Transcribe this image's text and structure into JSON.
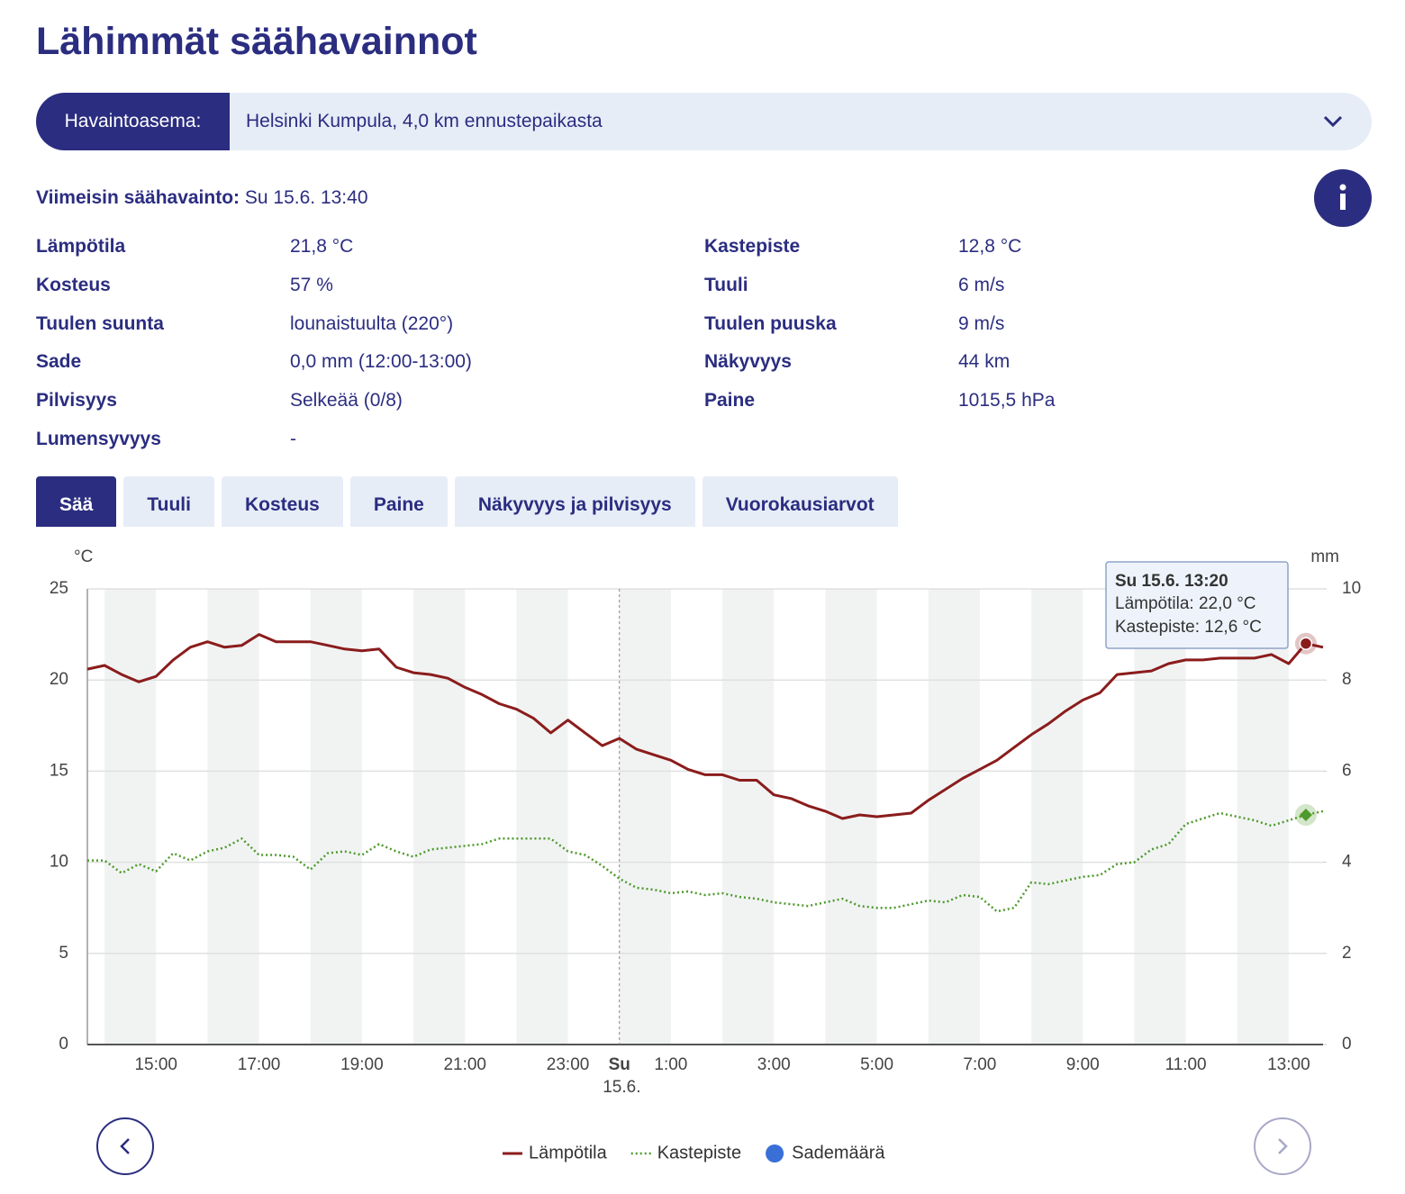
{
  "header": {
    "title": "Lähimmät säähavainnot"
  },
  "station": {
    "label": "Havaintoasema:",
    "value": "Helsinki Kumpula, 4,0 km ennustepaikasta"
  },
  "latest": {
    "label": "Viimeisin säähavainto:",
    "value": "Su 15.6. 13:40"
  },
  "observations": {
    "rows": [
      [
        "Lämpötila",
        "21,8 °C",
        "Kastepiste",
        "12,8 °C"
      ],
      [
        "Kosteus",
        "57 %",
        "Tuuli",
        "6 m/s"
      ],
      [
        "Tuulen suunta",
        "lounaistuulta (220°)",
        "Tuulen puuska",
        "9 m/s"
      ],
      [
        "Sade",
        "0,0 mm (12:00-13:00)",
        "Näkyvyys",
        "44 km"
      ],
      [
        "Pilvisyys",
        "Selkeää (0/8)",
        "Paine",
        "1015,5 hPa"
      ],
      [
        "Lumensyvyys",
        "-"
      ]
    ]
  },
  "tabs": [
    {
      "label": "Sää",
      "active": true
    },
    {
      "label": "Tuuli",
      "active": false
    },
    {
      "label": "Kosteus",
      "active": false
    },
    {
      "label": "Paine",
      "active": false
    },
    {
      "label": "Näkyvyys ja pilvisyys",
      "active": false
    },
    {
      "label": "Vuorokausiarvot",
      "active": false
    }
  ],
  "chart_data": {
    "type": "line",
    "y_label": "°C",
    "y2_label": "mm",
    "categories": [
      null,
      null,
      null,
      null,
      "15:00",
      null,
      null,
      null,
      null,
      null,
      "17:00",
      null,
      null,
      null,
      null,
      null,
      "19:00",
      null,
      null,
      null,
      null,
      null,
      "21:00",
      null,
      null,
      null,
      null,
      null,
      "23:00",
      null,
      null,
      "Su 15.6.",
      null,
      null,
      "1:00",
      null,
      null,
      null,
      null,
      null,
      "3:00",
      null,
      null,
      null,
      null,
      null,
      "5:00",
      null,
      null,
      null,
      null,
      null,
      "7:00",
      null,
      null,
      null,
      null,
      null,
      "9:00",
      null,
      null,
      null,
      null,
      null,
      "11:00",
      null,
      null,
      null,
      null,
      null,
      "13:00",
      null,
      null
    ],
    "series": [
      {
        "name": "Lämpötila",
        "color": "#8b1c1c",
        "style": "solid",
        "values": [
          20.6,
          20.8,
          20.3,
          19.9,
          20.2,
          21.1,
          21.8,
          22.1,
          21.8,
          21.9,
          22.5,
          22.1,
          22.1,
          22.1,
          21.9,
          21.7,
          21.6,
          21.7,
          20.7,
          20.4,
          20.3,
          20.1,
          19.6,
          19.2,
          18.7,
          18.4,
          17.9,
          17.1,
          17.8,
          17.1,
          16.4,
          16.8,
          16.2,
          15.9,
          15.6,
          15.1,
          14.8,
          14.8,
          14.5,
          14.5,
          13.7,
          13.5,
          13.1,
          12.8,
          12.4,
          12.6,
          12.5,
          12.6,
          12.7,
          13.4,
          14.0,
          14.6,
          15.1,
          15.6,
          16.3,
          17.0,
          17.6,
          18.3,
          18.9,
          19.3,
          20.3,
          20.4,
          20.5,
          20.9,
          21.1,
          21.1,
          21.2,
          21.2,
          21.2,
          21.4,
          20.9,
          22.0,
          21.8
        ]
      },
      {
        "name": "Kastepiste",
        "color": "#4e9a2c",
        "style": "dotted",
        "values": [
          10.1,
          10.1,
          9.4,
          9.9,
          9.5,
          10.5,
          10.1,
          10.6,
          10.8,
          11.3,
          10.4,
          10.4,
          10.3,
          9.6,
          10.5,
          10.6,
          10.4,
          11.0,
          10.6,
          10.3,
          10.7,
          10.8,
          10.9,
          11.0,
          11.3,
          11.3,
          11.3,
          11.3,
          10.6,
          10.4,
          9.8,
          9.1,
          8.6,
          8.5,
          8.3,
          8.4,
          8.2,
          8.3,
          8.1,
          8.0,
          7.8,
          7.7,
          7.6,
          7.8,
          8.0,
          7.6,
          7.5,
          7.5,
          7.7,
          7.9,
          7.8,
          8.2,
          8.1,
          7.3,
          7.5,
          8.9,
          8.8,
          9.0,
          9.2,
          9.3,
          9.9,
          10.0,
          10.7,
          11.0,
          12.1,
          12.4,
          12.7,
          12.5,
          12.3,
          12.0,
          12.3,
          12.6,
          12.8
        ]
      },
      {
        "name": "Sademäärä",
        "color": "#3a6fd8",
        "style": "bar",
        "axis": "y2",
        "values": [
          0,
          0,
          0,
          0,
          0,
          0,
          0,
          0,
          0,
          0,
          0,
          0,
          0,
          0,
          0,
          0,
          0,
          0,
          0,
          0,
          0,
          0,
          0,
          0,
          0,
          0,
          0,
          0,
          0,
          0,
          0,
          0,
          0,
          0,
          0,
          0,
          0,
          0,
          0,
          0,
          0,
          0,
          0,
          0,
          0,
          0,
          0,
          0,
          0,
          0,
          0,
          0,
          0,
          0,
          0,
          0,
          0,
          0,
          0,
          0,
          0,
          0,
          0,
          0,
          0,
          0,
          0,
          0,
          0,
          0,
          0,
          0,
          0
        ]
      }
    ],
    "ylim": [
      0,
      25
    ],
    "yticks": [
      0,
      5,
      10,
      15,
      20,
      25
    ],
    "y2lim": [
      0,
      10
    ],
    "y2ticks": [
      0,
      2,
      4,
      6,
      8,
      10
    ],
    "grid": true,
    "legend": "bottom",
    "tooltip": {
      "title": "Su 15.6. 13:20",
      "lines": [
        "Lämpötila: 22,0 °C",
        "Kastepiste: 12,6 °C"
      ]
    }
  }
}
